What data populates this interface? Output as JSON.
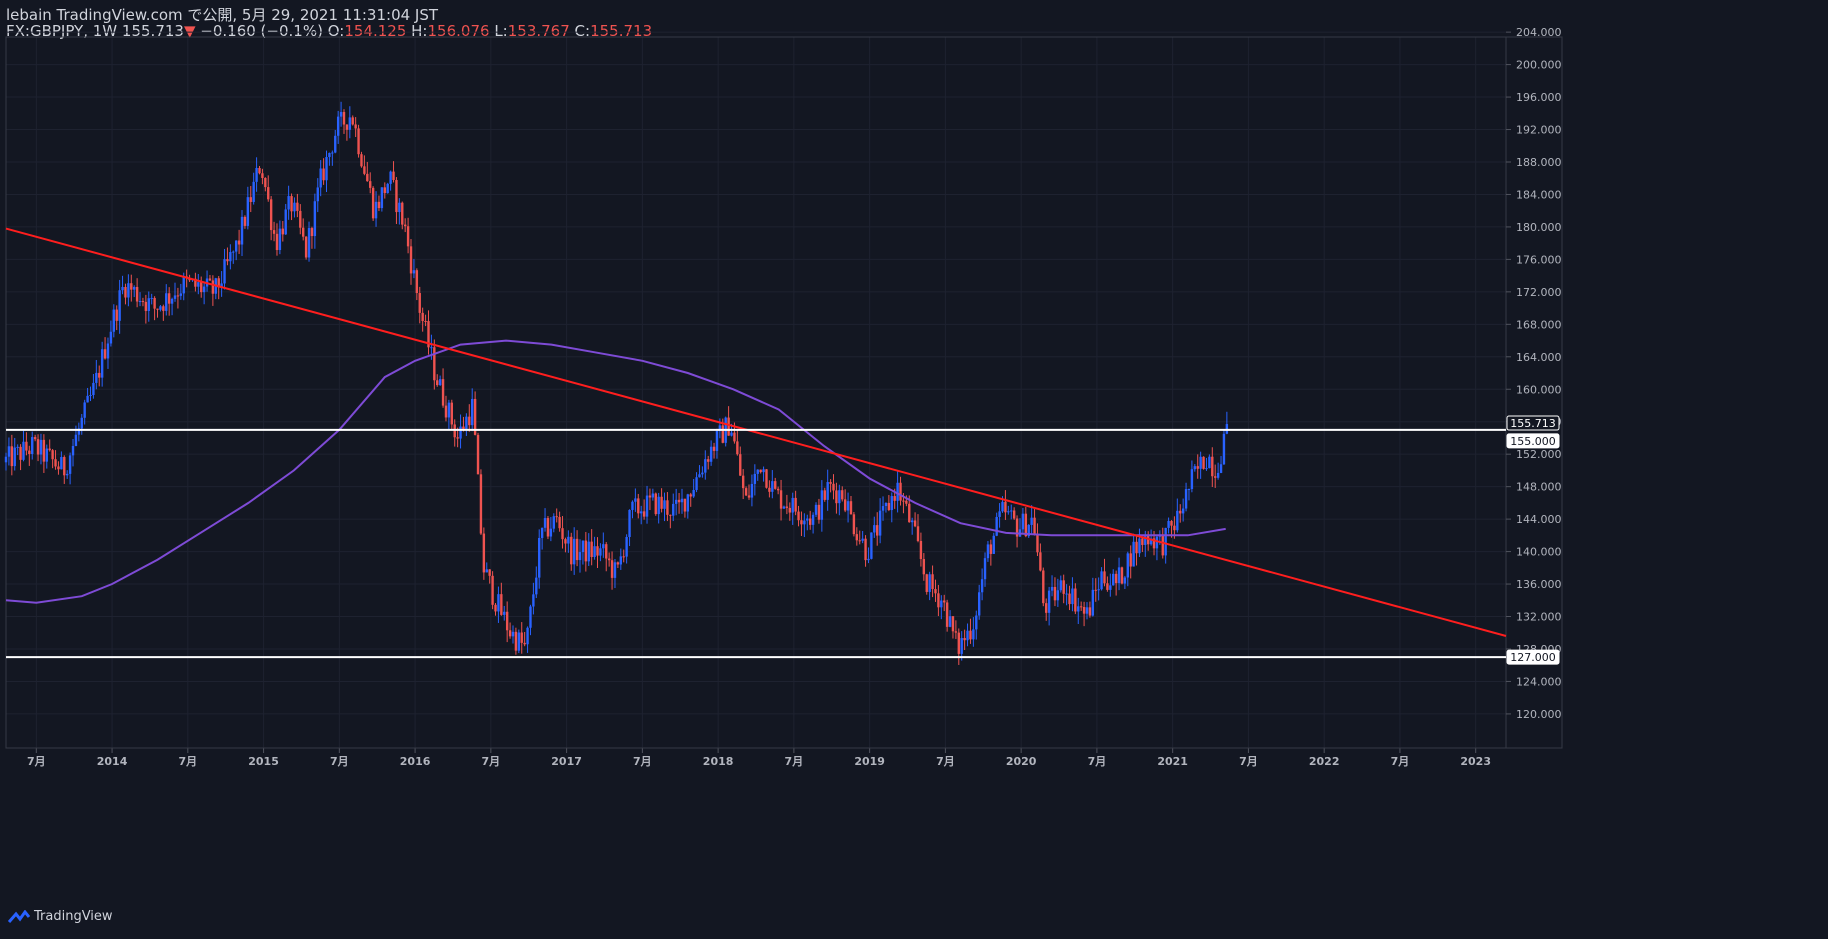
{
  "header": {
    "line1": "lebain TradingView.com で公開, 5月 29, 2021 11:31:04 JST",
    "symbol": "FX:GBPJPY, 1W",
    "price": "155.713",
    "down_marker": "▼",
    "change": "−0.160 (−0.1%)",
    "o_label": "O:",
    "o_value": "154.125",
    "h_label": "H:",
    "h_value": "156.076",
    "l_label": "L:",
    "l_value": "153.767",
    "c_label": "C:",
    "c_value": "155.713"
  },
  "footer": {
    "brand": "TradingView"
  },
  "colors": {
    "background": "#131722",
    "up": "#2962ff",
    "down": "#ef5350",
    "trendline": "#ff1e1e",
    "ma": "#7e4bd6",
    "hline": "#ffffff",
    "axis_text": "#b2b5be",
    "grid": "#1e2230"
  },
  "chart_data": {
    "type": "candlestick",
    "symbol": "FX:GBPJPY",
    "interval": "1W",
    "x_ticks": [
      "7月",
      "2014",
      "7月",
      "2015",
      "7月",
      "2016",
      "7月",
      "2017",
      "7月",
      "2018",
      "7月",
      "2019",
      "7月",
      "2020",
      "7月",
      "2021",
      "7月",
      "2022",
      "7月",
      "2023"
    ],
    "x_tick_dates": [
      2013.5,
      2014.0,
      2014.5,
      2015.0,
      2015.5,
      2016.0,
      2016.5,
      2017.0,
      2017.5,
      2018.0,
      2018.5,
      2019.0,
      2019.5,
      2020.0,
      2020.5,
      2021.0,
      2021.5,
      2022.0,
      2022.5,
      2023.0
    ],
    "y_ticks": [
      "204.000",
      "200.000",
      "196.000",
      "192.000",
      "188.000",
      "184.000",
      "180.000",
      "176.000",
      "172.000",
      "168.000",
      "164.000",
      "160.000",
      "156.000",
      "152.000",
      "148.000",
      "144.000",
      "140.000",
      "136.000",
      "132.000",
      "128.000",
      "124.000",
      "120.000"
    ],
    "y_tick_values": [
      204,
      200,
      196,
      192,
      188,
      184,
      180,
      176,
      172,
      168,
      164,
      160,
      156,
      152,
      148,
      144,
      140,
      136,
      132,
      128,
      124,
      120
    ],
    "ylim": [
      115.8,
      203.4
    ],
    "xlim": [
      2013.3,
      2023.2
    ],
    "price_anchors": [
      [
        2013.3,
        151
      ],
      [
        2013.5,
        153
      ],
      [
        2013.7,
        150
      ],
      [
        2013.9,
        160
      ],
      [
        2014.0,
        167
      ],
      [
        2014.1,
        173
      ],
      [
        2014.3,
        170
      ],
      [
        2014.5,
        173
      ],
      [
        2014.7,
        172
      ],
      [
        2014.85,
        178
      ],
      [
        2015.0,
        188
      ],
      [
        2015.1,
        178
      ],
      [
        2015.2,
        183
      ],
      [
        2015.3,
        177
      ],
      [
        2015.4,
        186
      ],
      [
        2015.5,
        192
      ],
      [
        2015.6,
        194
      ],
      [
        2015.75,
        182
      ],
      [
        2015.85,
        186
      ],
      [
        2015.95,
        180
      ],
      [
        2016.05,
        170
      ],
      [
        2016.15,
        162
      ],
      [
        2016.3,
        154
      ],
      [
        2016.4,
        158
      ],
      [
        2016.47,
        138
      ],
      [
        2016.55,
        134
      ],
      [
        2016.65,
        130
      ],
      [
        2016.75,
        128
      ],
      [
        2016.85,
        142
      ],
      [
        2016.95,
        144
      ],
      [
        2017.05,
        140
      ],
      [
        2017.25,
        140
      ],
      [
        2017.35,
        137
      ],
      [
        2017.45,
        145
      ],
      [
        2017.6,
        146
      ],
      [
        2017.75,
        145
      ],
      [
        2017.85,
        148
      ],
      [
        2017.95,
        152
      ],
      [
        2018.1,
        156
      ],
      [
        2018.2,
        146
      ],
      [
        2018.3,
        151
      ],
      [
        2018.4,
        147
      ],
      [
        2018.55,
        145
      ],
      [
        2018.65,
        144
      ],
      [
        2018.75,
        148
      ],
      [
        2018.85,
        147
      ],
      [
        2018.9,
        144
      ],
      [
        2019.0,
        140
      ],
      [
        2019.1,
        144
      ],
      [
        2019.2,
        148
      ],
      [
        2019.3,
        143
      ],
      [
        2019.4,
        136
      ],
      [
        2019.5,
        134
      ],
      [
        2019.6,
        128
      ],
      [
        2019.7,
        131
      ],
      [
        2019.8,
        140
      ],
      [
        2019.9,
        145
      ],
      [
        2020.0,
        143
      ],
      [
        2020.1,
        144
      ],
      [
        2020.17,
        133
      ],
      [
        2020.3,
        136
      ],
      [
        2020.45,
        132
      ],
      [
        2020.55,
        137
      ],
      [
        2020.65,
        136
      ],
      [
        2020.75,
        140
      ],
      [
        2020.85,
        142
      ],
      [
        2020.95,
        141
      ],
      [
        2021.05,
        144
      ],
      [
        2021.15,
        149
      ],
      [
        2021.25,
        152
      ],
      [
        2021.3,
        150
      ],
      [
        2021.35,
        153
      ],
      [
        2021.37,
        155.7
      ]
    ],
    "ma_anchors": [
      [
        2013.3,
        134.0
      ],
      [
        2013.5,
        133.7
      ],
      [
        2013.8,
        134.5
      ],
      [
        2014.0,
        136
      ],
      [
        2014.3,
        139
      ],
      [
        2014.6,
        142.5
      ],
      [
        2014.9,
        146
      ],
      [
        2015.2,
        150
      ],
      [
        2015.5,
        155
      ],
      [
        2015.8,
        161.5
      ],
      [
        2016.0,
        163.5
      ],
      [
        2016.3,
        165.5
      ],
      [
        2016.6,
        166
      ],
      [
        2016.9,
        165.5
      ],
      [
        2017.2,
        164.5
      ],
      [
        2017.5,
        163.5
      ],
      [
        2017.8,
        162
      ],
      [
        2018.1,
        160
      ],
      [
        2018.4,
        157.5
      ],
      [
        2018.7,
        153
      ],
      [
        2019.0,
        149
      ],
      [
        2019.3,
        146
      ],
      [
        2019.6,
        143.5
      ],
      [
        2019.9,
        142.3
      ],
      [
        2020.2,
        142
      ],
      [
        2020.5,
        142
      ],
      [
        2020.8,
        142
      ],
      [
        2021.1,
        142
      ],
      [
        2021.35,
        142.8
      ]
    ],
    "trendline": {
      "x": [
        2013.3,
        2023.2
      ],
      "y": [
        179.8,
        129.6
      ]
    },
    "hlines": [
      155.0,
      127.0
    ],
    "last_price": 155.713,
    "price_labels": [
      "155.713",
      "155.000",
      "127.000"
    ]
  }
}
